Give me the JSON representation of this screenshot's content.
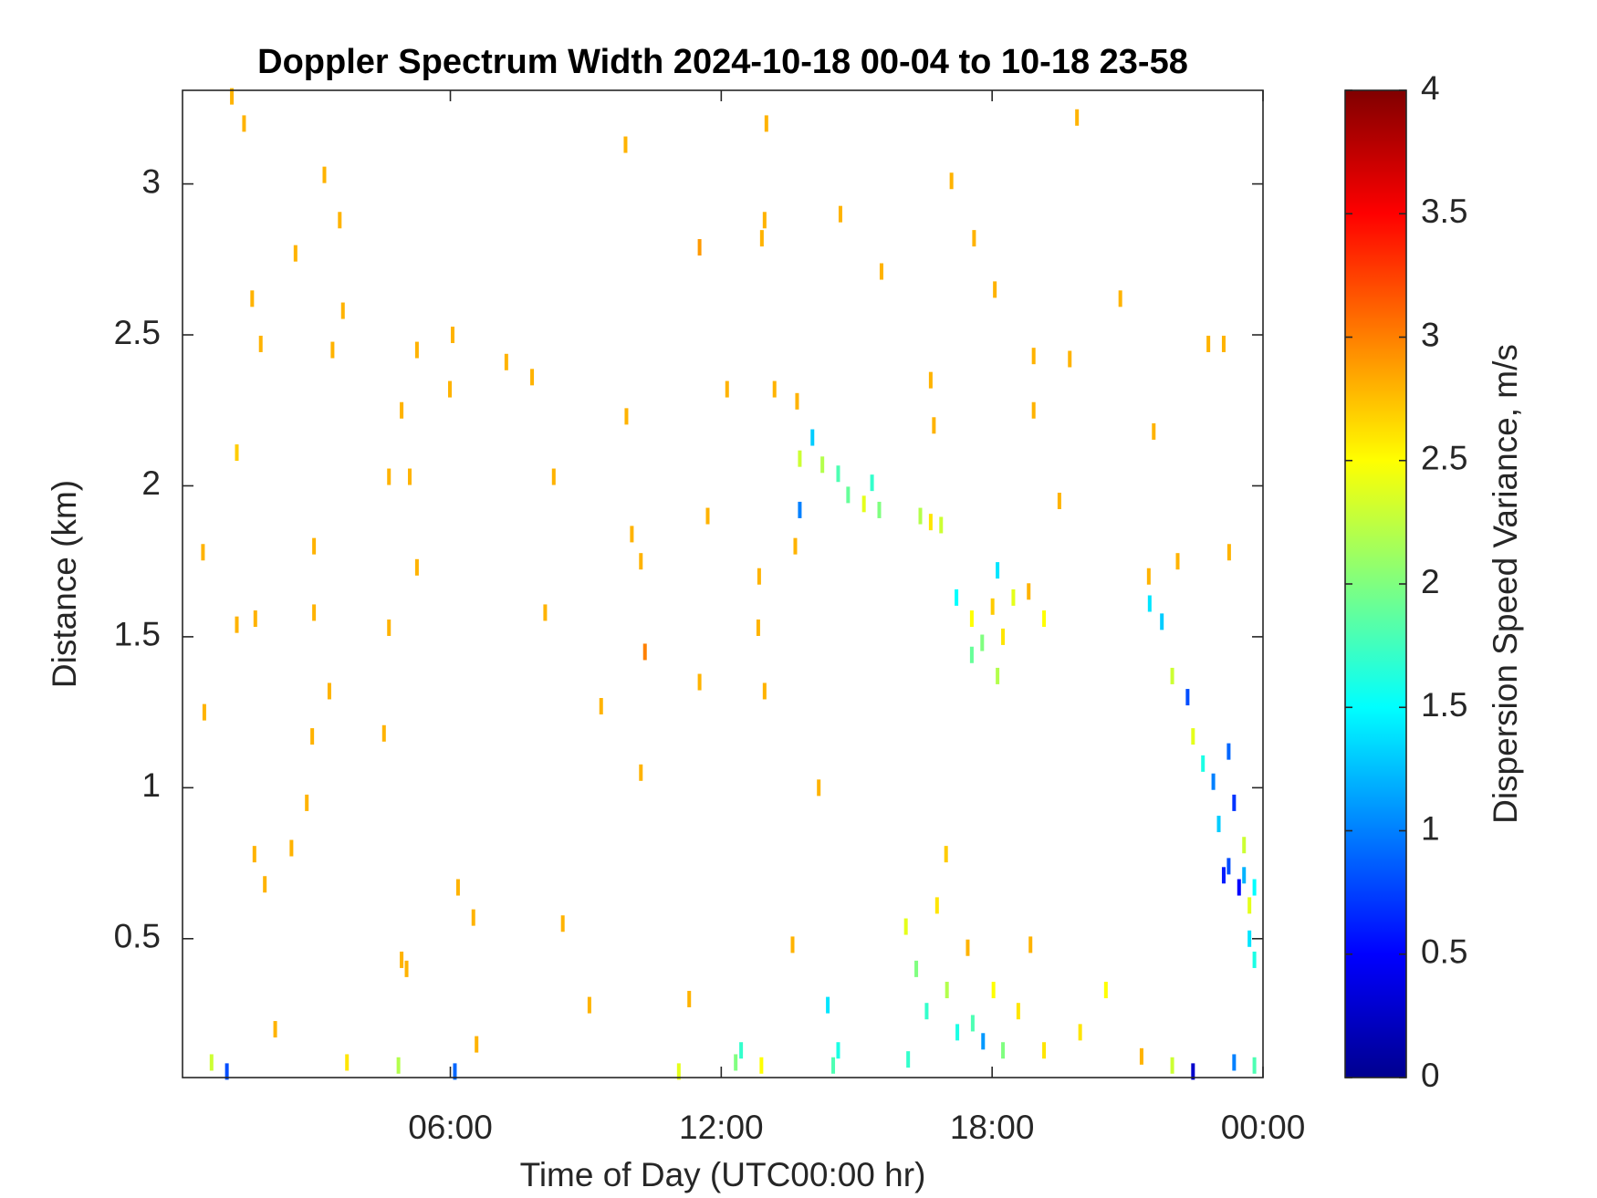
{
  "chart_data": {
    "type": "heatmap",
    "title": "Doppler Spectrum Width 2024-10-18 00-04 to 10-18 23-58",
    "xlabel": "Time of Day (UTC00:00 hr)",
    "ylabel": "Distance (km)",
    "colorbar_label": "Dispersion Speed Variance, m/s",
    "colormap": "jet",
    "clim": [
      0,
      4
    ],
    "cticks": [
      0,
      0.5,
      1,
      1.5,
      2,
      2.5,
      3,
      3.5,
      4
    ],
    "xlim": [
      0.067,
      24
    ],
    "xticks": [
      {
        "value": 6,
        "label": "06:00"
      },
      {
        "value": 12,
        "label": "12:00"
      },
      {
        "value": 18,
        "label": "18:00"
      },
      {
        "value": 24,
        "label": "00:00"
      }
    ],
    "ylim": [
      0.04,
      3.31
    ],
    "yticks": [
      0.5,
      1,
      1.5,
      2,
      2.5,
      3
    ],
    "x": [
      1.16,
      1.43,
      3.21,
      3.55,
      2.57,
      1.61,
      3.62,
      1.8,
      3.39,
      5.26,
      6.05,
      5.99,
      7.24,
      7.81,
      4.92,
      9.9,
      1.27,
      4.64,
      5.1,
      8.29,
      0.52,
      2.98,
      5.26,
      1.27,
      1.68,
      2.98,
      4.64,
      8.1,
      10.31,
      0.55,
      2.94,
      3.32,
      4.53,
      2.82,
      1.66,
      2.48,
      1.89,
      6.17,
      6.51,
      8.49,
      4.92,
      5.03,
      9.08,
      2.12,
      6.58,
      9.88,
      13.0,
      11.52,
      12.9,
      12.96,
      14.64,
      15.55,
      17.1,
      19.88,
      17.6,
      18.06,
      20.84,
      18.92,
      19.72,
      22.79,
      23.13,
      16.64,
      12.13,
      13.18,
      18.92,
      13.68,
      16.71,
      21.58,
      11.7,
      10.02,
      10.22,
      19.49,
      22.11,
      23.25,
      21.47,
      13.64,
      12.84,
      12.82,
      11.52,
      12.96,
      9.34,
      10.22,
      14.16,
      13.58,
      11.29,
      18.85,
      13.74,
      14.02,
      14.24,
      14.59,
      14.81,
      15.16,
      15.34,
      15.5,
      13.74,
      16.41,
      16.64,
      16.87,
      17.21,
      17.55,
      17.78,
      18.01,
      18.12,
      18.24,
      18.47,
      18.81,
      19.15,
      18.12,
      17.55,
      21.49,
      21.76,
      21.99,
      22.33,
      22.45,
      22.67,
      22.9,
      23.24,
      23.36,
      23.02,
      23.24,
      23.58,
      23.81,
      23.13,
      23.47,
      23.7,
      23.7,
      23.81,
      23.58,
      16.09,
      16.32,
      16.55,
      16.78,
      17.0,
      17.23,
      17.46,
      17.57,
      17.8,
      18.03,
      18.24,
      18.58,
      16.98,
      16.14,
      14.36,
      14.59,
      14.48,
      0.71,
      1.05,
      3.71,
      4.85,
      6.1,
      12.32,
      12.44,
      12.89,
      11.06,
      19.15,
      21.31,
      21.99,
      22.45,
      23.36,
      23.81,
      19.95,
      20.52
    ],
    "y": [
      3.29,
      3.2,
      3.03,
      2.88,
      2.77,
      2.62,
      2.58,
      2.47,
      2.45,
      2.45,
      2.5,
      2.32,
      2.41,
      2.36,
      2.25,
      2.23,
      2.11,
      2.03,
      2.03,
      2.03,
      1.78,
      1.8,
      1.73,
      1.54,
      1.56,
      1.58,
      1.53,
      1.58,
      1.45,
      1.25,
      1.17,
      1.32,
      1.18,
      0.95,
      0.78,
      0.8,
      0.68,
      0.67,
      0.57,
      0.55,
      0.43,
      0.4,
      0.28,
      0.2,
      0.15,
      3.13,
      3.2,
      2.79,
      2.82,
      2.88,
      2.9,
      2.71,
      3.01,
      3.22,
      2.82,
      2.65,
      2.62,
      2.43,
      2.42,
      2.47,
      2.47,
      2.35,
      2.32,
      2.32,
      2.25,
      2.28,
      2.2,
      2.18,
      1.9,
      1.84,
      1.75,
      1.95,
      1.75,
      1.78,
      1.7,
      1.8,
      1.7,
      1.53,
      1.35,
      1.32,
      1.27,
      1.05,
      1.0,
      0.48,
      0.3,
      0.48,
      2.09,
      2.16,
      2.07,
      2.04,
      1.97,
      1.94,
      2.01,
      1.92,
      1.92,
      1.9,
      1.88,
      1.87,
      1.63,
      1.56,
      1.48,
      1.6,
      1.72,
      1.5,
      1.63,
      1.65,
      1.56,
      1.37,
      1.44,
      1.61,
      1.55,
      1.37,
      1.3,
      1.17,
      1.08,
      1.02,
      1.12,
      0.95,
      0.88,
      0.74,
      0.71,
      0.67,
      0.71,
      0.67,
      0.61,
      0.5,
      0.43,
      0.81,
      0.54,
      0.4,
      0.26,
      0.61,
      0.33,
      0.19,
      0.47,
      0.22,
      0.16,
      0.33,
      0.13,
      0.26,
      0.78,
      0.1,
      0.28,
      0.13,
      0.08,
      0.09,
      0.06,
      0.09,
      0.08,
      0.06,
      0.09,
      0.13,
      0.08,
      0.06,
      0.13,
      0.11,
      0.08,
      0.06,
      0.09,
      0.08,
      0.19,
      0.33
    ],
    "values": [
      2.8,
      2.8,
      2.8,
      2.8,
      2.8,
      2.8,
      2.8,
      2.8,
      2.8,
      2.8,
      2.8,
      2.8,
      2.8,
      2.8,
      2.8,
      2.8,
      2.7,
      2.8,
      2.8,
      2.8,
      2.8,
      2.8,
      2.8,
      2.8,
      2.8,
      2.8,
      2.8,
      2.8,
      3.0,
      2.8,
      2.8,
      2.8,
      2.8,
      2.8,
      2.8,
      2.8,
      2.8,
      2.8,
      2.8,
      2.8,
      2.8,
      2.8,
      2.8,
      2.8,
      2.8,
      2.8,
      2.8,
      2.9,
      2.8,
      2.8,
      2.8,
      2.8,
      2.8,
      2.8,
      2.8,
      2.8,
      2.8,
      2.8,
      2.8,
      2.8,
      2.8,
      2.8,
      2.8,
      2.8,
      2.8,
      2.8,
      2.8,
      2.8,
      2.8,
      2.8,
      2.8,
      2.8,
      2.8,
      2.8,
      2.8,
      2.8,
      2.8,
      2.8,
      2.8,
      2.8,
      2.8,
      2.8,
      2.8,
      2.8,
      2.8,
      2.8,
      2.3,
      1.3,
      2.2,
      1.8,
      1.9,
      2.4,
      1.7,
      2.0,
      1.0,
      2.2,
      2.6,
      2.3,
      1.5,
      2.5,
      2.0,
      2.7,
      1.4,
      2.6,
      2.4,
      2.8,
      2.5,
      2.2,
      1.9,
      1.4,
      1.3,
      2.3,
      0.8,
      2.4,
      1.6,
      1.0,
      0.9,
      0.7,
      1.3,
      0.8,
      1.2,
      1.5,
      0.6,
      0.5,
      2.4,
      1.4,
      1.6,
      2.3,
      2.4,
      2.0,
      1.7,
      2.6,
      2.2,
      1.6,
      2.8,
      1.8,
      1.1,
      2.5,
      2.0,
      2.6,
      2.7,
      1.7,
      1.4,
      1.6,
      1.8,
      2.3,
      0.8,
      2.6,
      2.2,
      0.9,
      2.0,
      1.7,
      2.5,
      2.4,
      2.6,
      2.8,
      2.3,
      0.3,
      1.0,
      1.8,
      2.6,
      2.5
    ]
  }
}
